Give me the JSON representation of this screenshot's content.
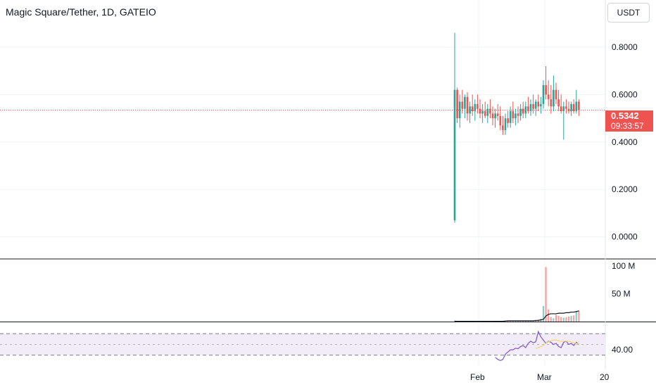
{
  "header": {
    "symbol_title": "Magic Square/Tether, 1D, GATEIO",
    "currency": "USDT"
  },
  "price_tag": {
    "price": "0.5342",
    "countdown": "09:33:57",
    "color": "#ef5350"
  },
  "colors": {
    "up": "#26a69a",
    "down": "#ef5350",
    "rsi_line": "#7e57c2",
    "rsi_ma": "#f5d76e",
    "rsi_band": "#ede7f6",
    "volume_ma": "#131722"
  },
  "chart_data": [
    {
      "type": "candlestick",
      "name": "price",
      "y_ticks": [
        "0.8000",
        "0.6000",
        "0.4000",
        "0.2000",
        "0.0000"
      ],
      "y_tick_values": [
        0.8,
        0.6,
        0.4,
        0.2,
        0.0
      ],
      "ylim": [
        -0.01,
        0.88
      ],
      "x_ticks": [
        "Feb",
        "Mar",
        "20"
      ],
      "last_price": 0.5342,
      "candles": [
        [
          0.07,
          0.86,
          0.06,
          0.62
        ],
        [
          0.62,
          0.63,
          0.48,
          0.5
        ],
        [
          0.5,
          0.6,
          0.46,
          0.57
        ],
        [
          0.57,
          0.62,
          0.52,
          0.54
        ],
        [
          0.54,
          0.6,
          0.5,
          0.59
        ],
        [
          0.59,
          0.61,
          0.49,
          0.52
        ],
        [
          0.52,
          0.57,
          0.48,
          0.55
        ],
        [
          0.55,
          0.6,
          0.51,
          0.53
        ],
        [
          0.53,
          0.58,
          0.49,
          0.56
        ],
        [
          0.56,
          0.6,
          0.52,
          0.54
        ],
        [
          0.54,
          0.58,
          0.5,
          0.52
        ],
        [
          0.52,
          0.56,
          0.48,
          0.53
        ],
        [
          0.53,
          0.57,
          0.5,
          0.51
        ],
        [
          0.51,
          0.56,
          0.48,
          0.54
        ],
        [
          0.54,
          0.58,
          0.5,
          0.52
        ],
        [
          0.52,
          0.55,
          0.47,
          0.5
        ],
        [
          0.5,
          0.54,
          0.46,
          0.52
        ],
        [
          0.52,
          0.56,
          0.49,
          0.51
        ],
        [
          0.51,
          0.55,
          0.45,
          0.47
        ],
        [
          0.47,
          0.51,
          0.43,
          0.45
        ],
        [
          0.45,
          0.52,
          0.43,
          0.5
        ],
        [
          0.5,
          0.53,
          0.46,
          0.48
        ],
        [
          0.48,
          0.55,
          0.46,
          0.53
        ],
        [
          0.53,
          0.57,
          0.48,
          0.5
        ],
        [
          0.5,
          0.54,
          0.47,
          0.52
        ],
        [
          0.52,
          0.55,
          0.48,
          0.51
        ],
        [
          0.51,
          0.56,
          0.49,
          0.54
        ],
        [
          0.54,
          0.57,
          0.5,
          0.52
        ],
        [
          0.52,
          0.57,
          0.5,
          0.55
        ],
        [
          0.55,
          0.59,
          0.52,
          0.53
        ],
        [
          0.53,
          0.58,
          0.51,
          0.56
        ],
        [
          0.56,
          0.6,
          0.52,
          0.54
        ],
        [
          0.54,
          0.58,
          0.51,
          0.57
        ],
        [
          0.57,
          0.6,
          0.53,
          0.55
        ],
        [
          0.55,
          0.59,
          0.52,
          0.56
        ],
        [
          0.56,
          0.66,
          0.54,
          0.64
        ],
        [
          0.64,
          0.72,
          0.58,
          0.6
        ],
        [
          0.6,
          0.66,
          0.55,
          0.58
        ],
        [
          0.58,
          0.64,
          0.52,
          0.55
        ],
        [
          0.55,
          0.68,
          0.53,
          0.62
        ],
        [
          0.62,
          0.65,
          0.56,
          0.58
        ],
        [
          0.58,
          0.62,
          0.53,
          0.55
        ],
        [
          0.55,
          0.6,
          0.52,
          0.53
        ],
        [
          0.53,
          0.57,
          0.41,
          0.55
        ],
        [
          0.55,
          0.58,
          0.52,
          0.54
        ],
        [
          0.54,
          0.57,
          0.52,
          0.53
        ],
        [
          0.53,
          0.57,
          0.51,
          0.56
        ],
        [
          0.56,
          0.58,
          0.52,
          0.53
        ],
        [
          0.53,
          0.62,
          0.52,
          0.57
        ],
        [
          0.57,
          0.58,
          0.51,
          0.5342
        ]
      ]
    },
    {
      "type": "bar",
      "name": "volume",
      "y_ticks": [
        "100 M",
        "50 M"
      ],
      "y_tick_values": [
        100,
        50
      ],
      "ylim": [
        0,
        110
      ],
      "values": [
        2,
        0.5,
        0.5,
        0.5,
        0.5,
        0.5,
        0.5,
        0.5,
        0.5,
        0.5,
        0.5,
        0.5,
        0.5,
        0.5,
        0.5,
        0.5,
        1,
        1,
        1,
        1.5,
        1.5,
        1.5,
        1,
        1,
        1,
        1.5,
        1.5,
        1.5,
        2,
        2,
        2,
        2,
        3,
        4,
        5,
        28,
        98,
        22,
        8,
        6,
        12,
        10,
        8,
        7,
        8,
        9,
        10,
        11,
        18,
        20
      ],
      "ma_values": [
        0.5,
        0.5,
        0.5,
        0.5,
        0.5,
        0.5,
        0.5,
        0.5,
        0.5,
        0.5,
        0.5,
        0.5,
        0.5,
        0.5,
        0.5,
        0.5,
        0.5,
        0.5,
        0.5,
        0.5,
        1,
        1.5,
        1.5,
        1.5,
        1.5,
        1.5,
        1.5,
        1.5,
        1.5,
        1.5,
        1.5,
        1.5,
        2,
        2,
        3,
        4,
        10,
        13,
        14,
        14,
        14,
        15,
        15,
        15,
        16,
        16,
        17,
        17,
        18,
        19
      ]
    },
    {
      "type": "line",
      "name": "rsi",
      "y_ticks": [
        "40.00"
      ],
      "y_tick_values": [
        40
      ],
      "ylim": [
        10,
        90
      ],
      "band": [
        30,
        70
      ],
      "midline": 50,
      "start_index": 16,
      "values": [
        26,
        22,
        20,
        22,
        32,
        36,
        40,
        40,
        43,
        42,
        46,
        48,
        44,
        52,
        56,
        53,
        55,
        74,
        64,
        58,
        52,
        56,
        54,
        50,
        52,
        46,
        44,
        54,
        56,
        50,
        52,
        48,
        54,
        50
      ],
      "ma_values": [
        null,
        null,
        null,
        null,
        null,
        null,
        null,
        null,
        null,
        null,
        null,
        null,
        null,
        null,
        null,
        null,
        42,
        44,
        46,
        48,
        52,
        55,
        57,
        58,
        58,
        57,
        56,
        56,
        56,
        56,
        55,
        53,
        52,
        51
      ]
    }
  ]
}
